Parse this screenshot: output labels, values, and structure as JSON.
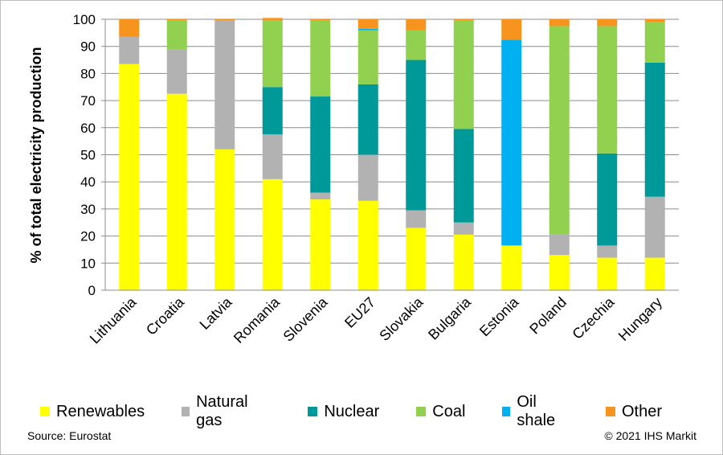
{
  "chart_data": {
    "type": "bar",
    "stacked": true,
    "ylabel": "% of total electricity production",
    "ylim": [
      0,
      100
    ],
    "yticks": [
      0,
      10,
      20,
      30,
      40,
      50,
      60,
      70,
      80,
      90,
      100
    ],
    "grid": true,
    "legend_position": "bottom",
    "categories": [
      "Lithuania",
      "Croatia",
      "Latvia",
      "Romania",
      "Slovenia",
      "EU27",
      "Slovakia",
      "Bulgaria",
      "Estonia",
      "Poland",
      "Czechia",
      "Hungary"
    ],
    "series": [
      {
        "name": "Renewables",
        "color": "#ffff00",
        "values": [
          83.5,
          72.5,
          52,
          41,
          33.5,
          33,
          23,
          20.5,
          16.5,
          13,
          12,
          12
        ]
      },
      {
        "name": "Natural gas",
        "color": "#b2b2b2",
        "values": [
          10,
          16.5,
          47.5,
          16.5,
          2.5,
          17,
          6.5,
          4.5,
          0,
          7.5,
          4.5,
          22.5
        ]
      },
      {
        "name": "Nuclear",
        "color": "#009999",
        "values": [
          0,
          0,
          0,
          17.5,
          35.5,
          26,
          55.5,
          34.5,
          0,
          0,
          34,
          49.5
        ]
      },
      {
        "name": "Coal",
        "color": "#92d050",
        "values": [
          0,
          10.5,
          0,
          24.5,
          28,
          20,
          11,
          40,
          0,
          77,
          47,
          15
        ]
      },
      {
        "name": "Oil shale",
        "color": "#00b0f0",
        "values": [
          0,
          0,
          0,
          0,
          0,
          0.5,
          0,
          0,
          76,
          0,
          0,
          0
        ]
      },
      {
        "name": "Other",
        "color": "#f7941d",
        "values": [
          6.5,
          0.5,
          0.5,
          1,
          0.5,
          3.5,
          4,
          0.5,
          7.5,
          2.5,
          2.5,
          1
        ]
      }
    ]
  },
  "footer": {
    "source": "Source: Eurostat",
    "copyright": "© 2021 IHS Markit"
  }
}
